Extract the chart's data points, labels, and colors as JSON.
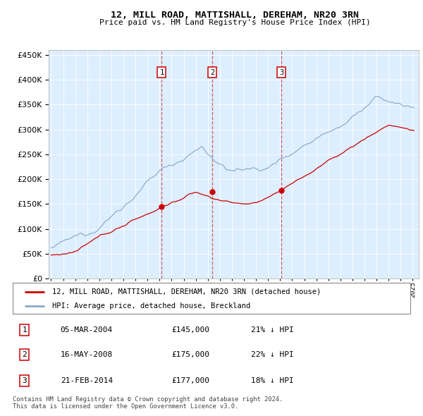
{
  "title": "12, MILL ROAD, MATTISHALL, DEREHAM, NR20 3RN",
  "subtitle": "Price paid vs. HM Land Registry's House Price Index (HPI)",
  "transactions": [
    {
      "num": 1,
      "date": "05-MAR-2004",
      "date_x": 2004.18,
      "price": 145000,
      "pct": "21% ↓ HPI"
    },
    {
      "num": 2,
      "date": "16-MAY-2008",
      "date_x": 2008.37,
      "price": 175000,
      "pct": "22% ↓ HPI"
    },
    {
      "num": 3,
      "date": "21-FEB-2014",
      "date_x": 2014.12,
      "price": 177000,
      "pct": "18% ↓ HPI"
    }
  ],
  "legend_house": "12, MILL ROAD, MATTISHALL, DEREHAM, NR20 3RN (detached house)",
  "legend_hpi": "HPI: Average price, detached house, Breckland",
  "footer1": "Contains HM Land Registry data © Crown copyright and database right 2024.",
  "footer2": "This data is licensed under the Open Government Licence v3.0.",
  "hpi_color": "#88aacc",
  "house_color": "#cc0000",
  "marker_color": "#cc0000",
  "dashed_color": "#cc4444",
  "background_color": "#ddeeff",
  "grid_color": "#bbccdd",
  "ylim": [
    0,
    460000
  ],
  "ytick_max": 450000,
  "xlim_start": 1994.8,
  "xlim_end": 2025.5
}
